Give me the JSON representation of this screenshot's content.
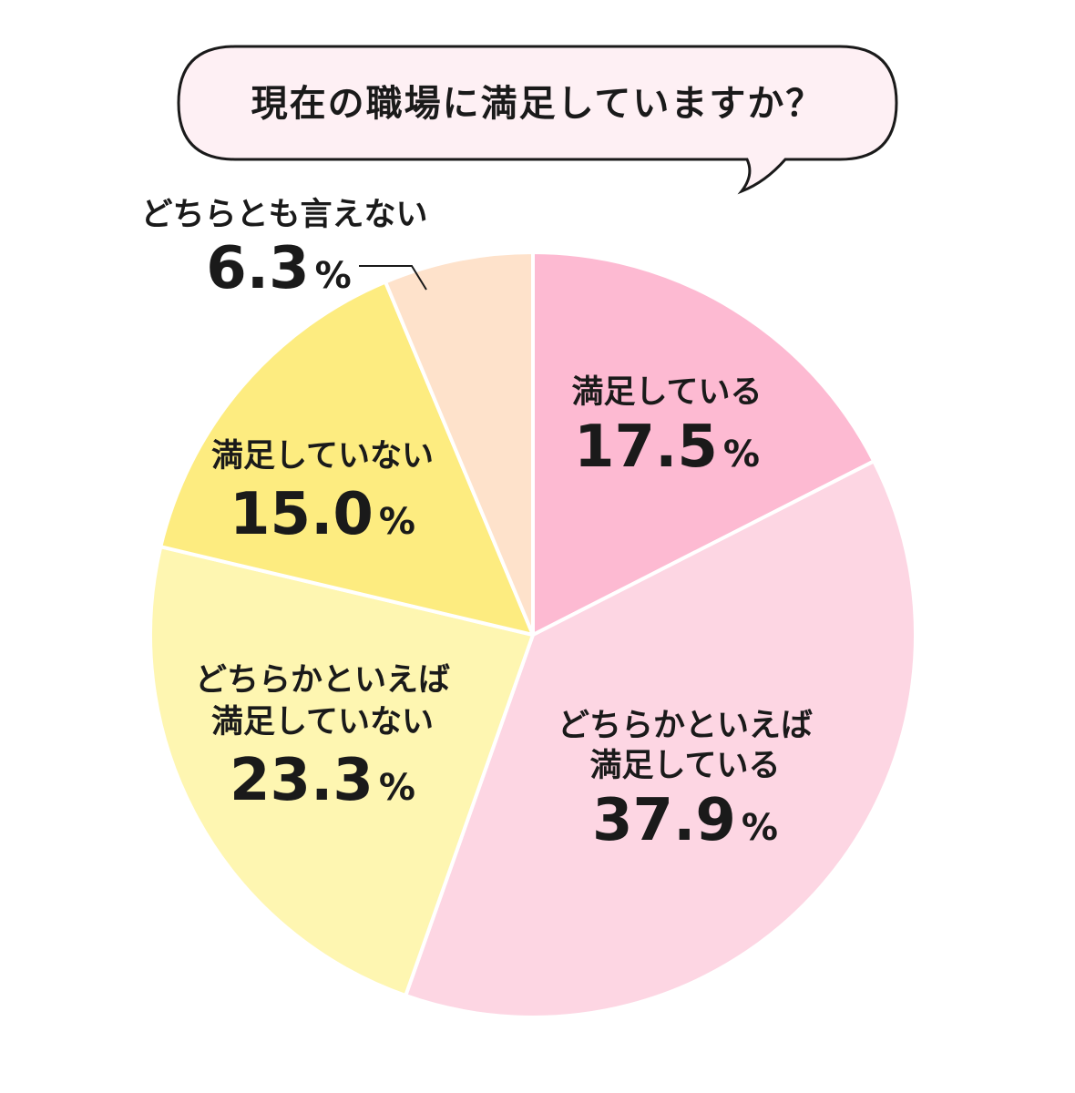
{
  "chart_data": {
    "type": "pie",
    "title": "現在の職場に満足していますか？",
    "percent_unit": "%",
    "start_angle_deg": 0,
    "direction": "clockwise",
    "slices": [
      {
        "label_lines": [
          "満足している"
        ],
        "value": 17.5,
        "value_text": "17.5",
        "color": "#FDBAD2"
      },
      {
        "label_lines": [
          "どちらかといえば",
          "満足している"
        ],
        "value": 37.9,
        "value_text": "37.9",
        "color": "#FDD6E3"
      },
      {
        "label_lines": [
          "どちらかといえば",
          "満足していない"
        ],
        "value": 23.3,
        "value_text": "23.3",
        "color": "#FEF6B1"
      },
      {
        "label_lines": [
          "満足していない"
        ],
        "value": 15.0,
        "value_text": "15.0",
        "color": "#FDEC80"
      },
      {
        "label_lines": [
          "どちらとも言えない"
        ],
        "value": 6.3,
        "value_text": "6.3",
        "color": "#FEE2CB"
      }
    ],
    "bubble_color": "#FEF0F4",
    "bubble_stroke": "#1a1a1a"
  }
}
